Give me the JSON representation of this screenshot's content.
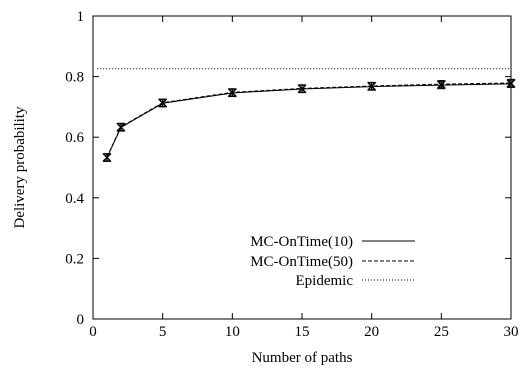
{
  "chart_data": {
    "type": "line",
    "xlabel": "Number of paths",
    "ylabel": "Delivery probability",
    "xlim": [
      0,
      30
    ],
    "ylim": [
      0,
      1
    ],
    "xticks": [
      0,
      5,
      10,
      15,
      20,
      25,
      30
    ],
    "yticks": [
      0,
      0.2,
      0.4,
      0.6,
      0.8,
      1
    ],
    "ytick_labels": [
      "0",
      "0.2",
      "0.4",
      "0.6",
      "0.8",
      "1"
    ],
    "grid": false,
    "legend_position": "lower-right",
    "series": [
      {
        "name": "MC-OnTime(10)",
        "line_style": "solid",
        "x": [
          1,
          2,
          5,
          10,
          15,
          20,
          25,
          30
        ],
        "y": [
          0.532,
          0.632,
          0.712,
          0.746,
          0.759,
          0.767,
          0.772,
          0.776
        ],
        "error": [
          0.012,
          0.012,
          0.012,
          0.012,
          0.012,
          0.012,
          0.012,
          0.012
        ]
      },
      {
        "name": "MC-OnTime(50)",
        "line_style": "dashed",
        "x": [
          1,
          2,
          5,
          10,
          15,
          20,
          25,
          30
        ],
        "y": [
          0.534,
          0.634,
          0.714,
          0.748,
          0.761,
          0.769,
          0.775,
          0.779
        ],
        "error": [
          0.012,
          0.012,
          0.012,
          0.012,
          0.012,
          0.012,
          0.012,
          0.012
        ]
      },
      {
        "name": "Epidemic",
        "line_style": "dotted",
        "x": [
          0.3,
          30
        ],
        "y": [
          0.826,
          0.826
        ]
      }
    ]
  }
}
